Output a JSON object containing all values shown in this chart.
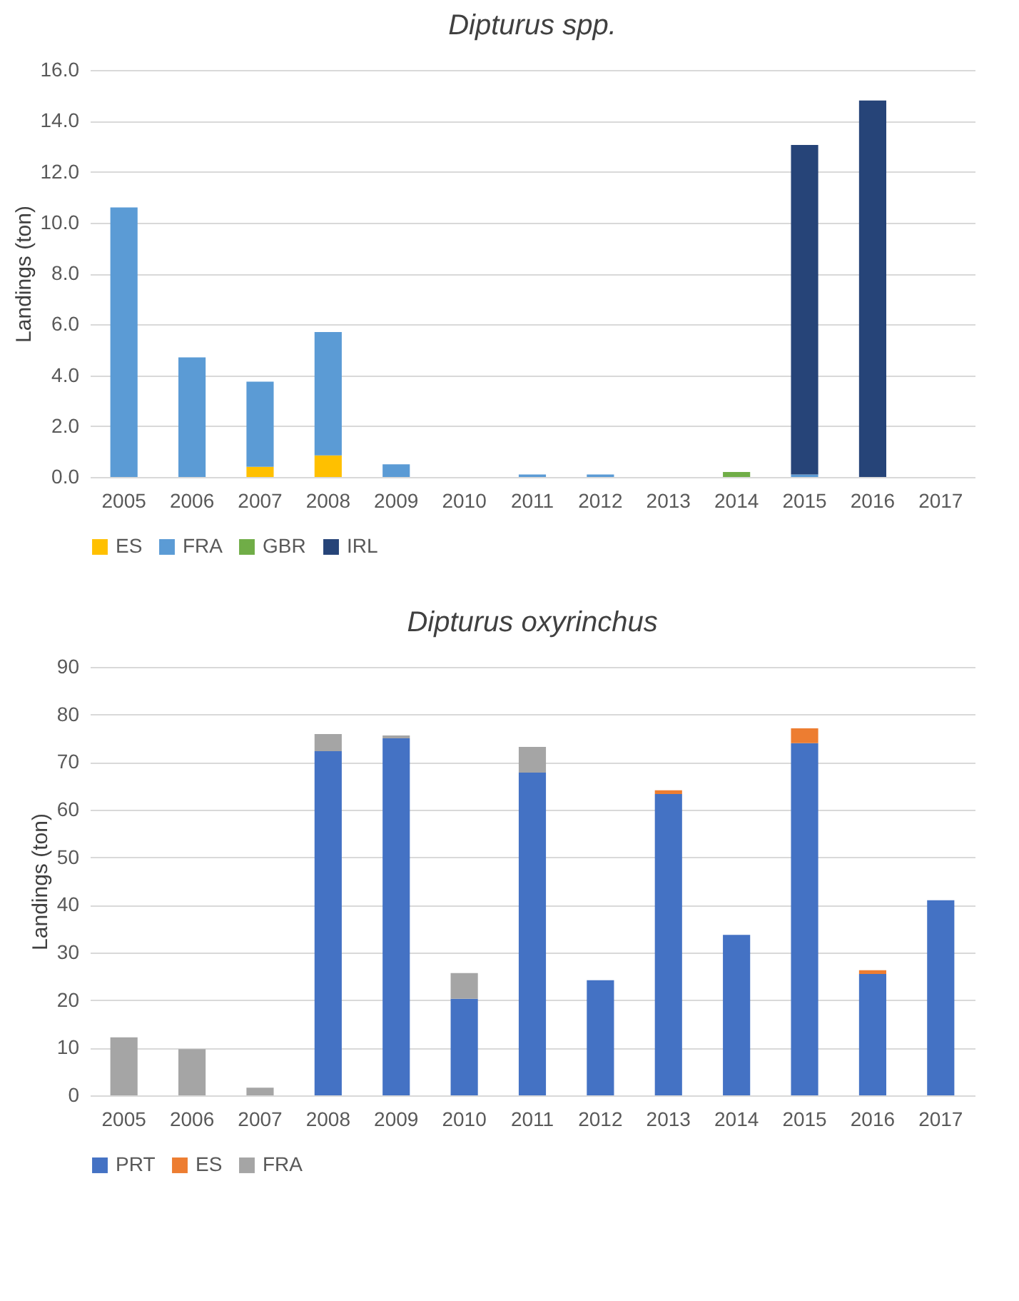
{
  "chart_data": [
    {
      "type": "bar",
      "title": "Dipturus spp.",
      "ylabel": "Landings (ton)",
      "stacked": true,
      "grid": "y",
      "legend": "bottom",
      "categories": [
        "2005",
        "2006",
        "2007",
        "2008",
        "2009",
        "2010",
        "2011",
        "2012",
        "2013",
        "2014",
        "2015",
        "2016",
        "2017"
      ],
      "ylim": [
        0,
        16
      ],
      "yticks": [
        {
          "value": 0,
          "label": "0.0"
        },
        {
          "value": 2,
          "label": "2.0"
        },
        {
          "value": 4,
          "label": "4.0"
        },
        {
          "value": 6,
          "label": "6.0"
        },
        {
          "value": 8,
          "label": "8.0"
        },
        {
          "value": 10,
          "label": "10.0"
        },
        {
          "value": 12,
          "label": "12.0"
        },
        {
          "value": 14,
          "label": "14.0"
        },
        {
          "value": 16,
          "label": "16.0"
        }
      ],
      "series": [
        {
          "name": "ES",
          "color": "#ffc000",
          "values": [
            null,
            null,
            0.4,
            0.85,
            null,
            null,
            null,
            null,
            null,
            null,
            null,
            null,
            null
          ]
        },
        {
          "name": "FRA",
          "color": "#5b9bd5",
          "values": [
            10.6,
            4.7,
            3.35,
            4.85,
            0.5,
            null,
            0.1,
            0.1,
            null,
            null,
            0.1,
            null,
            null
          ]
        },
        {
          "name": "GBR",
          "color": "#70ad47",
          "values": [
            null,
            null,
            null,
            null,
            null,
            null,
            null,
            null,
            null,
            0.2,
            null,
            null,
            null
          ]
        },
        {
          "name": "IRL",
          "color": "#264478",
          "values": [
            null,
            null,
            null,
            null,
            null,
            null,
            null,
            null,
            null,
            null,
            12.95,
            14.8,
            null
          ]
        }
      ]
    },
    {
      "type": "bar",
      "title": "Dipturus oxyrinchus",
      "ylabel": "Landings (ton)",
      "stacked": true,
      "grid": "y",
      "legend": "bottom",
      "categories": [
        "2005",
        "2006",
        "2007",
        "2008",
        "2009",
        "2010",
        "2011",
        "2012",
        "2013",
        "2014",
        "2015",
        "2016",
        "2017"
      ],
      "ylim": [
        0,
        90
      ],
      "yticks": [
        0,
        10,
        20,
        30,
        40,
        50,
        60,
        70,
        80,
        90
      ],
      "series": [
        {
          "name": "PRT",
          "color": "#4472c4",
          "values": [
            null,
            null,
            null,
            72.3,
            75,
            20.3,
            67.8,
            24.2,
            63.3,
            33.7,
            74,
            25.5,
            41
          ]
        },
        {
          "name": "ES",
          "color": "#ed7d31",
          "values": [
            null,
            null,
            null,
            null,
            null,
            null,
            null,
            null,
            0.8,
            null,
            3.1,
            0.8,
            null
          ]
        },
        {
          "name": "FRA",
          "color": "#a5a5a5",
          "values": [
            12.2,
            9.7,
            1.6,
            3.6,
            0.6,
            5.4,
            5.4,
            null,
            null,
            null,
            null,
            null,
            null
          ]
        }
      ]
    }
  ]
}
